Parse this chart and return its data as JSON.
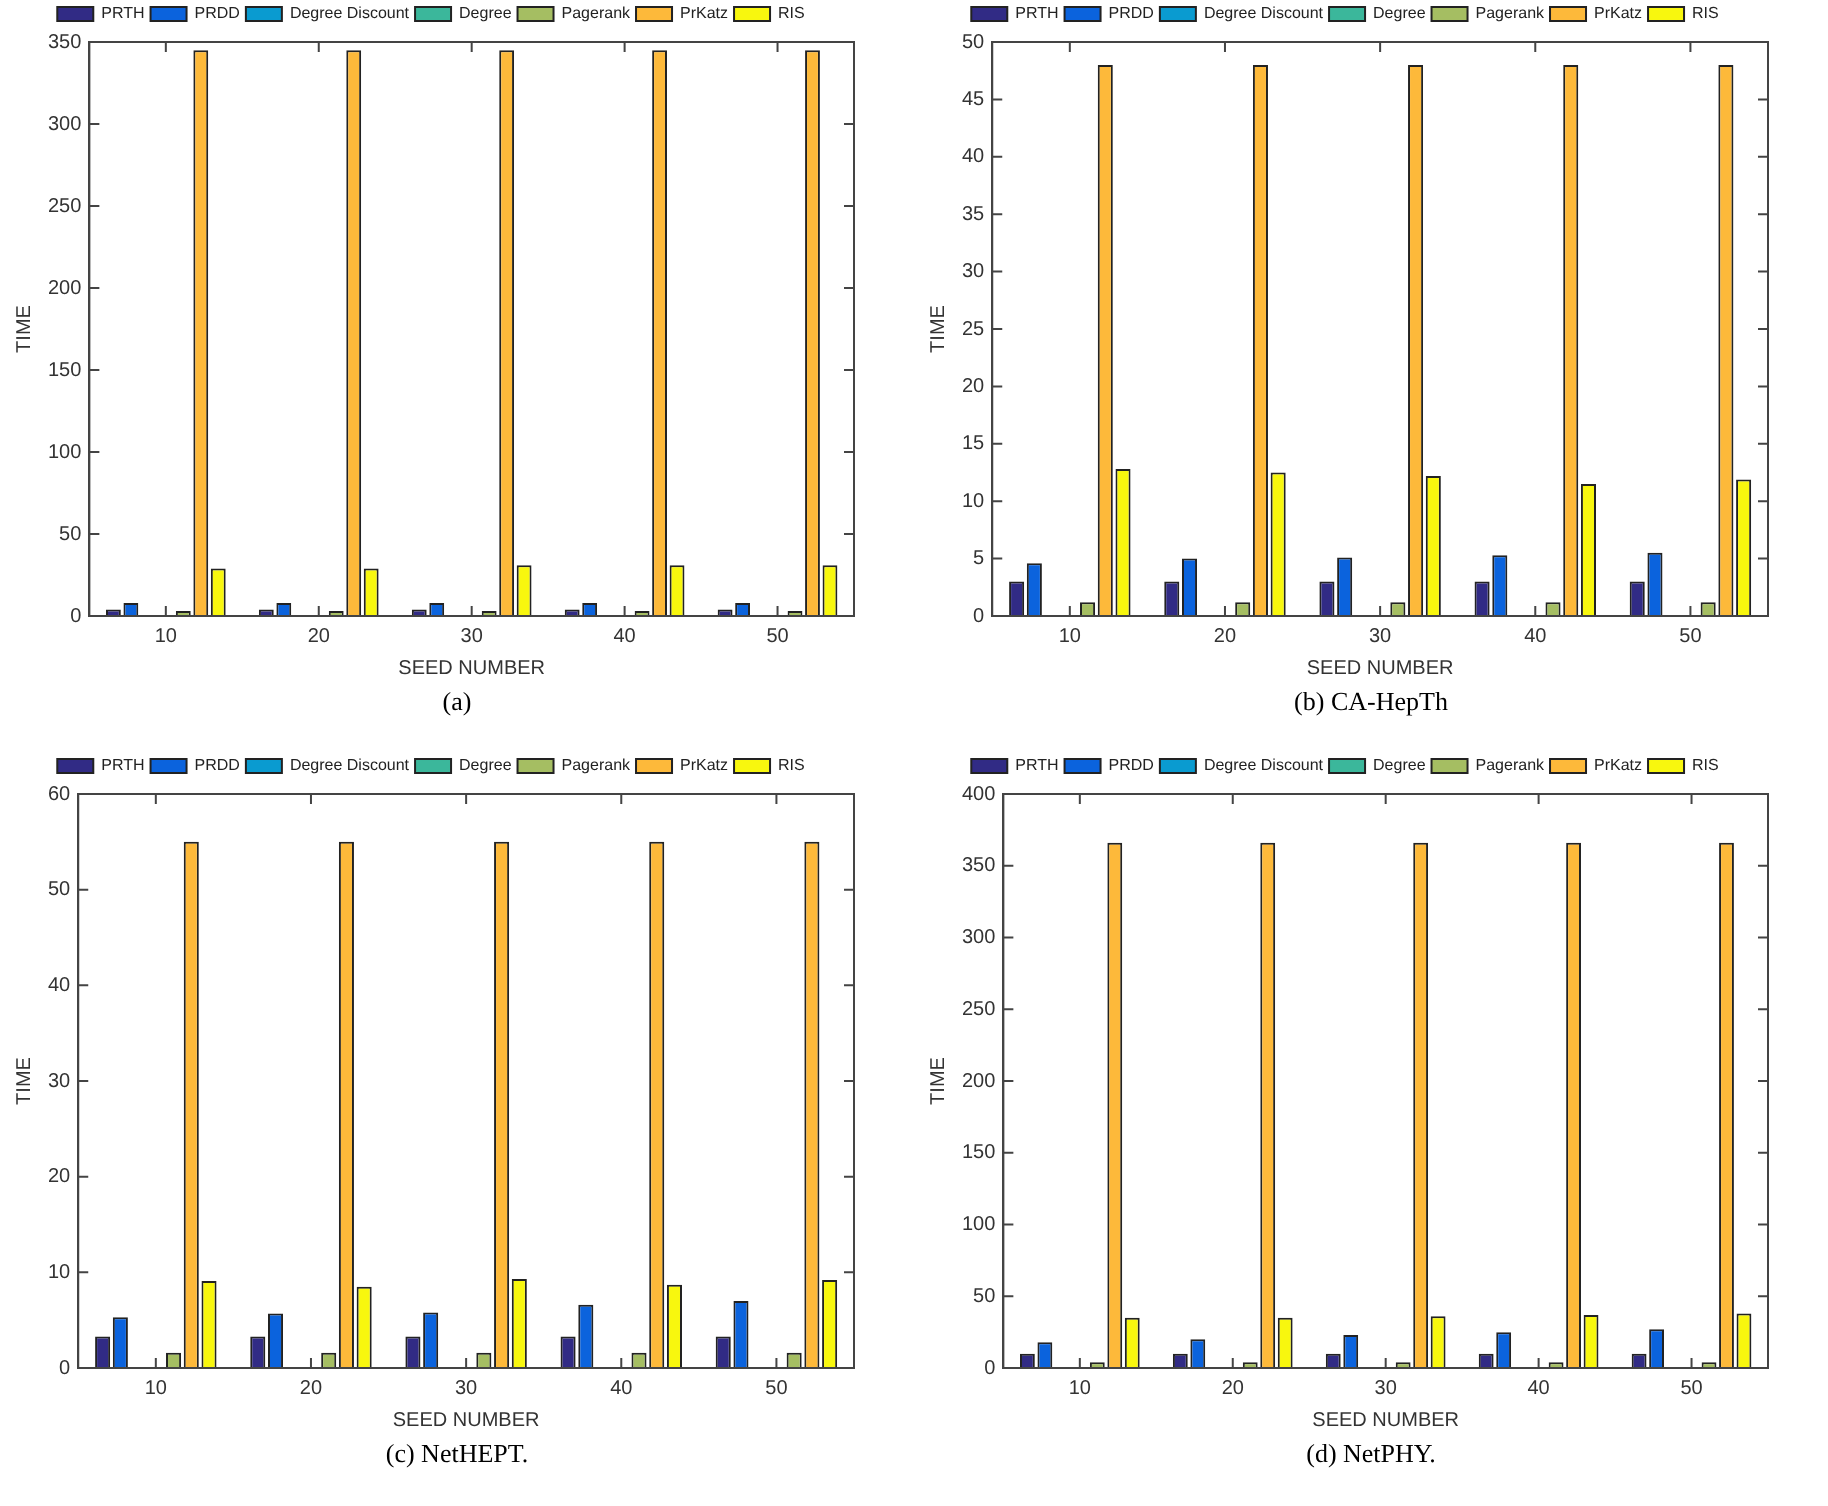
{
  "chart_data": [
    {
      "type": "bar",
      "xlabel": "SEED NUMBER",
      "ylabel": "TIME",
      "categories": [
        "10",
        "20",
        "30",
        "40",
        "50"
      ],
      "ylim": [
        0,
        350
      ],
      "yticks": [
        0,
        50,
        100,
        150,
        200,
        250,
        300,
        350
      ],
      "grid": false,
      "legend": "top",
      "annotations": [
        "(a)"
      ],
      "series": [
        {
          "name": "PRTH",
          "color": "#312b85",
          "values": [
            4,
            4,
            4,
            4,
            4
          ]
        },
        {
          "name": "PRDD",
          "color": "#0b63dd",
          "values": [
            8,
            8,
            8,
            8,
            8
          ]
        },
        {
          "name": "Degree Discount",
          "color": "#0a9bd0",
          "values": [
            0,
            0,
            0,
            0,
            0
          ]
        },
        {
          "name": "Degree",
          "color": "#3bb79b",
          "values": [
            0,
            0,
            0,
            0,
            0
          ]
        },
        {
          "name": "Pagerank",
          "color": "#a5be62",
          "values": [
            3,
            3,
            3,
            3,
            3
          ]
        },
        {
          "name": "PrKatz",
          "color": "#fdb93a",
          "values": [
            345,
            345,
            345,
            345,
            345
          ]
        },
        {
          "name": "RIS",
          "color": "#f8f70e",
          "values": [
            29,
            29,
            31,
            31,
            31
          ]
        }
      ]
    },
    {
      "type": "bar",
      "xlabel": "SEED NUMBER",
      "ylabel": "TIME",
      "categories": [
        "10",
        "20",
        "30",
        "40",
        "50"
      ],
      "ylim": [
        0,
        50
      ],
      "yticks": [
        0,
        5,
        10,
        15,
        20,
        25,
        30,
        35,
        40,
        45,
        50
      ],
      "grid": false,
      "legend": "top",
      "annotations": [
        "(b) CA-HepTh"
      ],
      "series": [
        {
          "name": "PRTH",
          "color": "#312b85",
          "values": [
            3,
            3,
            3,
            3,
            3
          ]
        },
        {
          "name": "PRDD",
          "color": "#0b63dd",
          "values": [
            4.6,
            5,
            5.1,
            5.3,
            5.5
          ]
        },
        {
          "name": "Degree Discount",
          "color": "#0a9bd0",
          "values": [
            0,
            0,
            0,
            0,
            0
          ]
        },
        {
          "name": "Degree",
          "color": "#3bb79b",
          "values": [
            0,
            0,
            0,
            0,
            0
          ]
        },
        {
          "name": "Pagerank",
          "color": "#a5be62",
          "values": [
            1.2,
            1.2,
            1.2,
            1.2,
            1.2
          ]
        },
        {
          "name": "PrKatz",
          "color": "#fdb93a",
          "values": [
            48,
            48,
            48,
            48,
            48
          ]
        },
        {
          "name": "RIS",
          "color": "#f8f70e",
          "values": [
            12.8,
            12.5,
            12.2,
            11.5,
            11.9
          ]
        }
      ]
    },
    {
      "type": "bar",
      "xlabel": "SEED NUMBER",
      "ylabel": "TIME",
      "categories": [
        "10",
        "20",
        "30",
        "40",
        "50"
      ],
      "ylim": [
        0,
        60
      ],
      "yticks": [
        0,
        10,
        20,
        30,
        40,
        50,
        60
      ],
      "grid": false,
      "legend": "top",
      "annotations": [
        "(c) NetHEPT."
      ],
      "series": [
        {
          "name": "PRTH",
          "color": "#312b85",
          "values": [
            3.3,
            3.3,
            3.3,
            3.3,
            3.3
          ]
        },
        {
          "name": "PRDD",
          "color": "#0b63dd",
          "values": [
            5.3,
            5.7,
            5.8,
            6.6,
            7
          ]
        },
        {
          "name": "Degree Discount",
          "color": "#0a9bd0",
          "values": [
            0,
            0,
            0,
            0,
            0
          ]
        },
        {
          "name": "Degree",
          "color": "#3bb79b",
          "values": [
            0,
            0,
            0,
            0,
            0
          ]
        },
        {
          "name": "Pagerank",
          "color": "#a5be62",
          "values": [
            1.6,
            1.6,
            1.6,
            1.6,
            1.6
          ]
        },
        {
          "name": "PrKatz",
          "color": "#fdb93a",
          "values": [
            55,
            55,
            55,
            55,
            55
          ]
        },
        {
          "name": "RIS",
          "color": "#f8f70e",
          "values": [
            9.1,
            8.5,
            9.3,
            8.7,
            9.2
          ]
        }
      ]
    },
    {
      "type": "bar",
      "xlabel": "SEED NUMBER",
      "ylabel": "TIME",
      "categories": [
        "10",
        "20",
        "30",
        "40",
        "50"
      ],
      "ylim": [
        0,
        400
      ],
      "yticks": [
        0,
        50,
        100,
        150,
        200,
        250,
        300,
        350,
        400
      ],
      "grid": false,
      "legend": "top",
      "annotations": [
        "(d) NetPHY."
      ],
      "series": [
        {
          "name": "PRTH",
          "color": "#312b85",
          "values": [
            10,
            10,
            10,
            10,
            10
          ]
        },
        {
          "name": "PRDD",
          "color": "#0b63dd",
          "values": [
            18,
            20,
            23,
            25,
            27
          ]
        },
        {
          "name": "Degree Discount",
          "color": "#0a9bd0",
          "values": [
            0,
            0,
            0,
            0,
            0
          ]
        },
        {
          "name": "Degree",
          "color": "#3bb79b",
          "values": [
            0,
            0,
            0,
            0,
            0
          ]
        },
        {
          "name": "Pagerank",
          "color": "#a5be62",
          "values": [
            4,
            4,
            4,
            4,
            4
          ]
        },
        {
          "name": "PrKatz",
          "color": "#fdb93a",
          "values": [
            366,
            366,
            366,
            366,
            366
          ]
        },
        {
          "name": "RIS",
          "color": "#f8f70e",
          "values": [
            35,
            35,
            36,
            37,
            38
          ]
        }
      ]
    }
  ]
}
